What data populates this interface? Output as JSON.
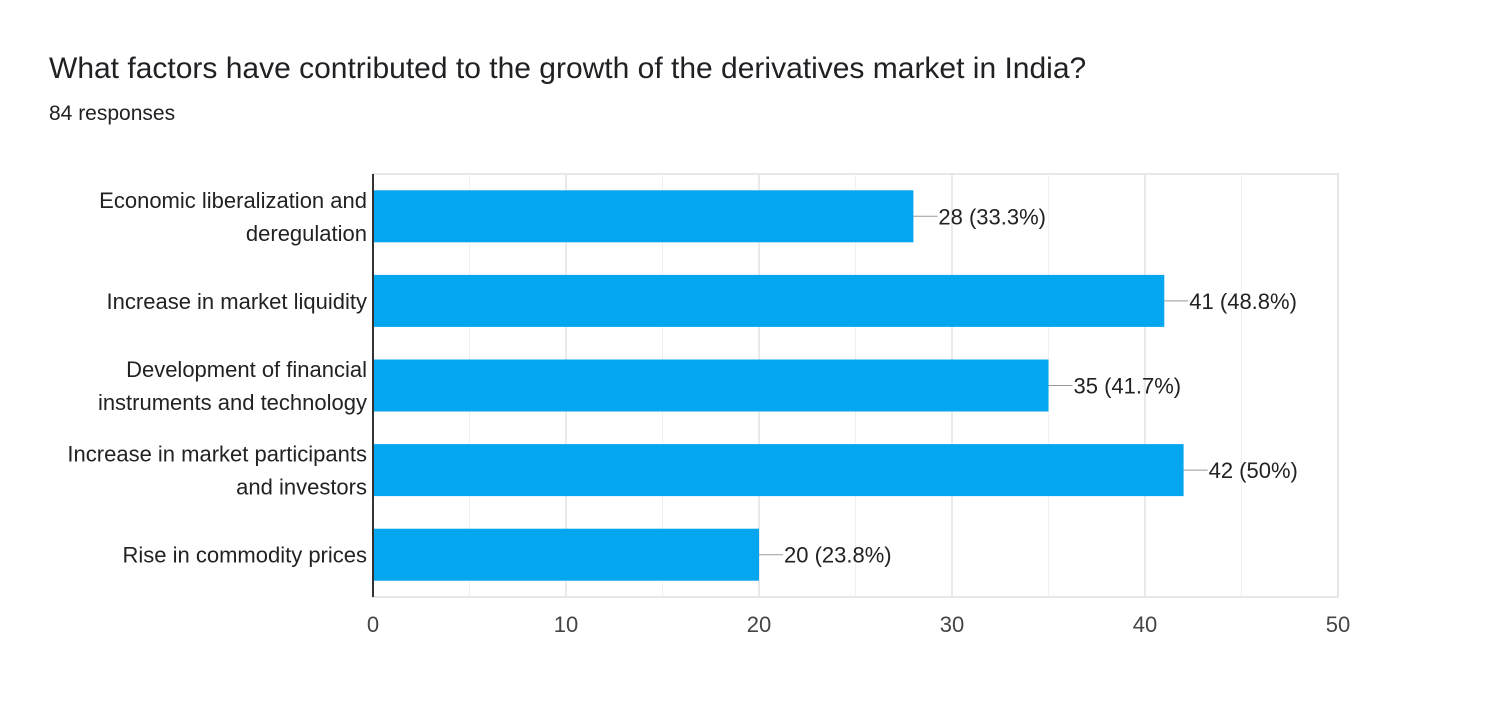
{
  "header": {
    "title": "What factors have contributed to the growth of the derivatives market in India?",
    "responses": "84 responses"
  },
  "colors": {
    "bar": "#05a6f0",
    "grid": "#e8e8e8",
    "axis": "#333333",
    "leader": "#999999"
  },
  "chart_data": {
    "type": "bar",
    "orientation": "horizontal",
    "title": "What factors have contributed to the growth of the derivatives market in India?",
    "subtitle": "84 responses",
    "categories": [
      [
        "Economic liberalization and",
        "deregulation"
      ],
      [
        "Increase in market liquidity"
      ],
      [
        "Development of financial",
        "instruments and technology"
      ],
      [
        "Increase in market participants",
        "and investors"
      ],
      [
        "Rise in commodity prices"
      ]
    ],
    "values": [
      28,
      41,
      35,
      42,
      20
    ],
    "value_labels": [
      "28 (33.3%)",
      "41 (48.8%)",
      "35 (41.7%)",
      "42 (50%)",
      "20 (23.8%)"
    ],
    "xlim": [
      0,
      50
    ],
    "xticks": [
      0,
      10,
      20,
      30,
      40,
      50
    ],
    "minor_grid_step": 5,
    "xlabel": "",
    "ylabel": ""
  }
}
